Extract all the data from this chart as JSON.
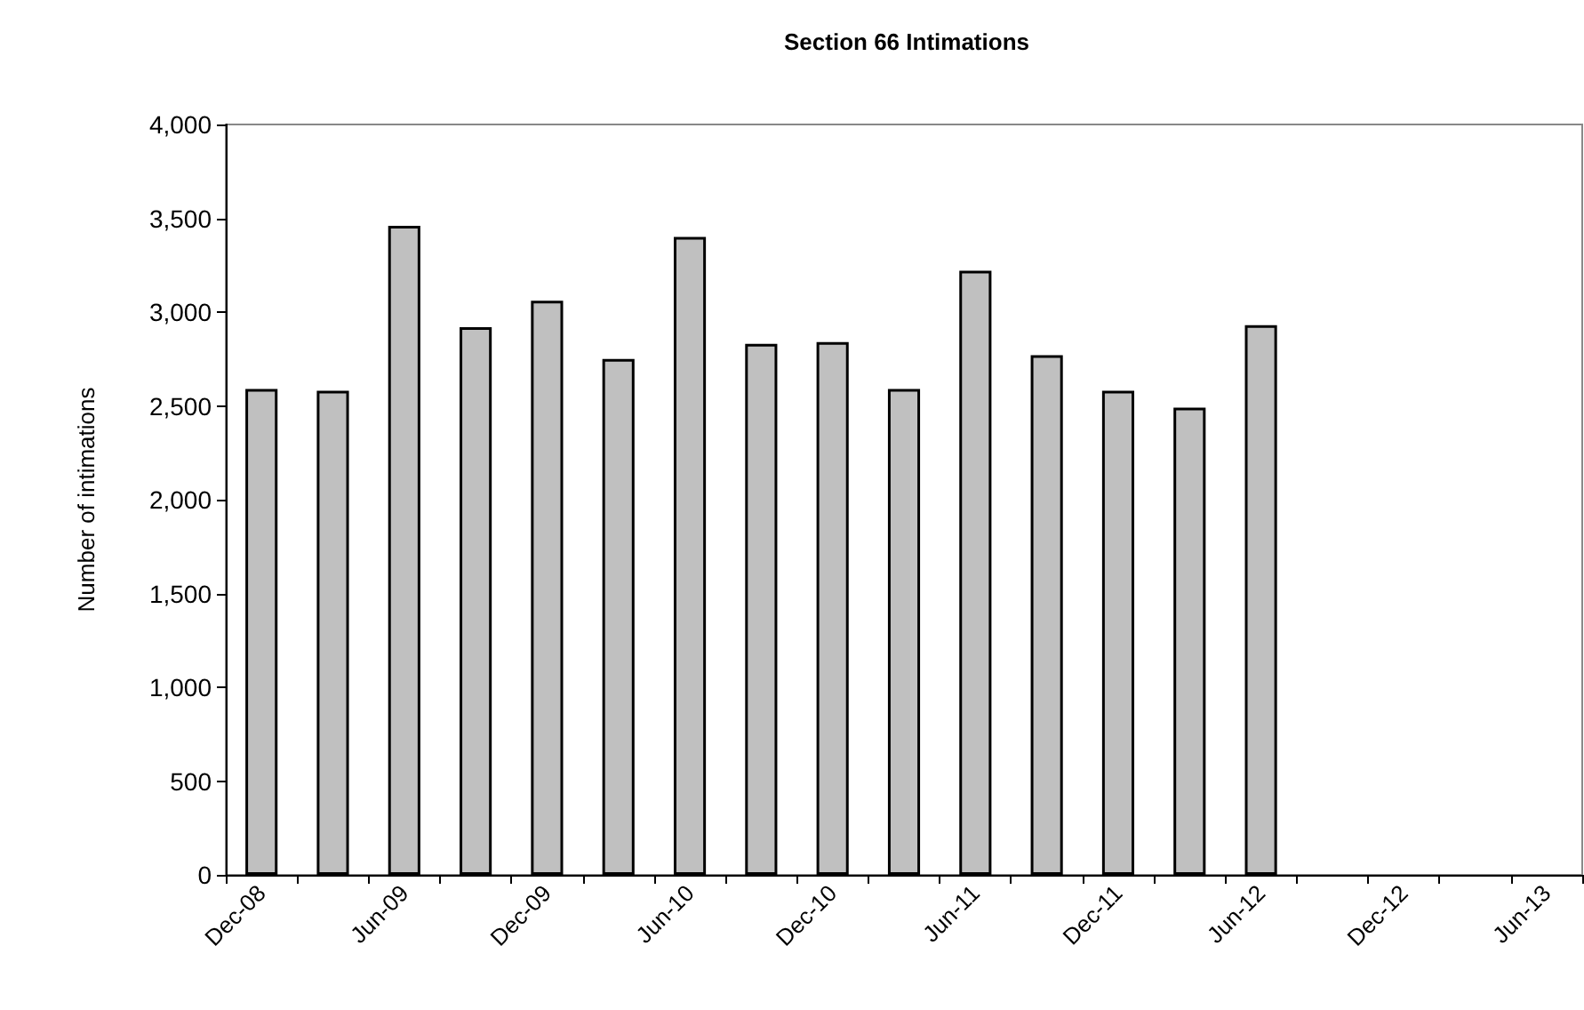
{
  "chart_data": {
    "type": "bar",
    "title": "Section 66 Intimations",
    "ylabel": "Number of intimations",
    "categories": [
      "Dec-08",
      null,
      "Jun-09",
      null,
      "Dec-09",
      null,
      "Jun-10",
      null,
      "Dec-10",
      null,
      "Jun-11",
      null,
      "Dec-11",
      null,
      "Jun-12",
      null,
      "Dec-12",
      null,
      "Jun-13"
    ],
    "values": [
      2590,
      2580,
      3460,
      2920,
      3060,
      2750,
      3400,
      2830,
      2840,
      2590,
      3220,
      2770,
      2580,
      2490,
      2930,
      null,
      null,
      null,
      null
    ],
    "color": "#c0c0c0",
    "ylim": [
      0,
      4000
    ],
    "yticks": [
      0,
      500,
      {
        "value": 1000,
        "label": "1,000"
      },
      {
        "value": 1500,
        "label": "1,500"
      },
      {
        "value": 2000,
        "label": "2,000"
      },
      {
        "value": 2500,
        "label": "2,500"
      },
      {
        "value": 3000,
        "label": "3,000"
      },
      {
        "value": 3500,
        "label": "3,500"
      },
      {
        "value": 4000,
        "label": "4,000"
      }
    ],
    "grid": false
  }
}
